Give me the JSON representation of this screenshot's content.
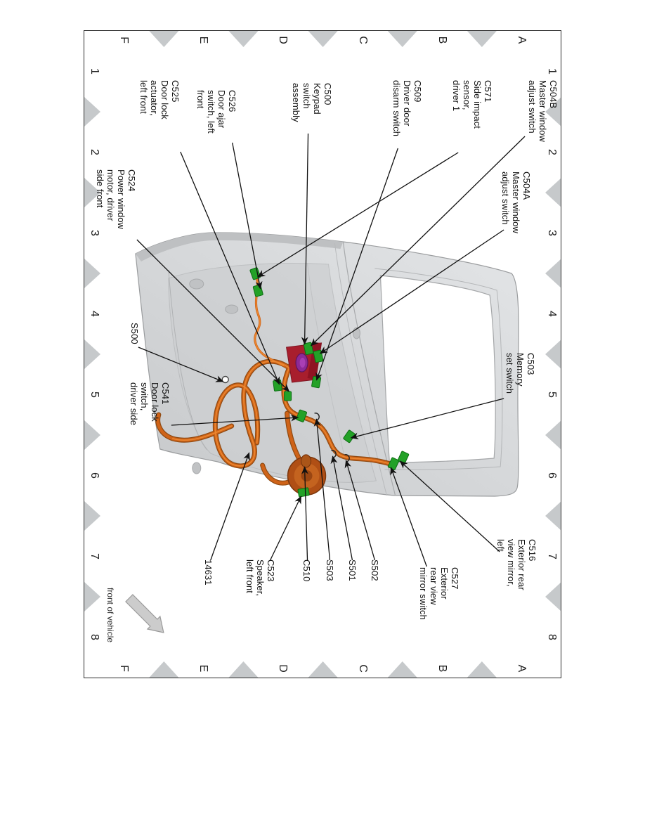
{
  "document": {
    "type": "wiring-harness location diagram, driver front door",
    "harness_part_number": "14631"
  },
  "grid": {
    "row_letters": [
      "A",
      "B",
      "C",
      "D",
      "E",
      "F"
    ],
    "column_numbers": [
      "1",
      "2",
      "3",
      "4",
      "5",
      "6",
      "7",
      "8"
    ]
  },
  "front_of_vehicle_label": "front of vehicle",
  "callouts": {
    "c504b": "C504B\nMaster window\nadjust switch",
    "c504a": "C504A\nMaster window\nadjust switch",
    "c571": "C571\nSide impact\nsensor,\ndriver 1",
    "c509": "C509\nDriver door\ndisarm switch",
    "c503": "C503\nMemory\nset switch",
    "c500": "C500\nKeypad\nswitch\nassembly",
    "c526": "C526\nDoor ajar\nswitch, left\nfront",
    "c525": "C525\nDoor lock\nactuator,\nleft front",
    "c524": "C524\nPower window\nmotor, driver\nside front",
    "s500": "S500",
    "c541": "C541\nDoor lock\nswitch,\ndriver side",
    "n14631": "14631",
    "c523": "C523\nSpeaker,\nleft front",
    "c510": "C510",
    "s503": "S503",
    "s501": "S501",
    "s502": "S502",
    "c527": "C527\nExterior\nrear view\nmirror switch",
    "c516": "C516\nExterior rear\nview mirror,\nleft"
  },
  "colors": {
    "harness_orange": "#cf6318",
    "connector_green": "#23a127",
    "switch_module_red": "#a81e2d",
    "switch_connector_purple": "#8d2a96",
    "door_panel_gray": "#d6d8da",
    "section_marker_gray": "#c6c9cb",
    "callout_line_black": "#111111"
  }
}
